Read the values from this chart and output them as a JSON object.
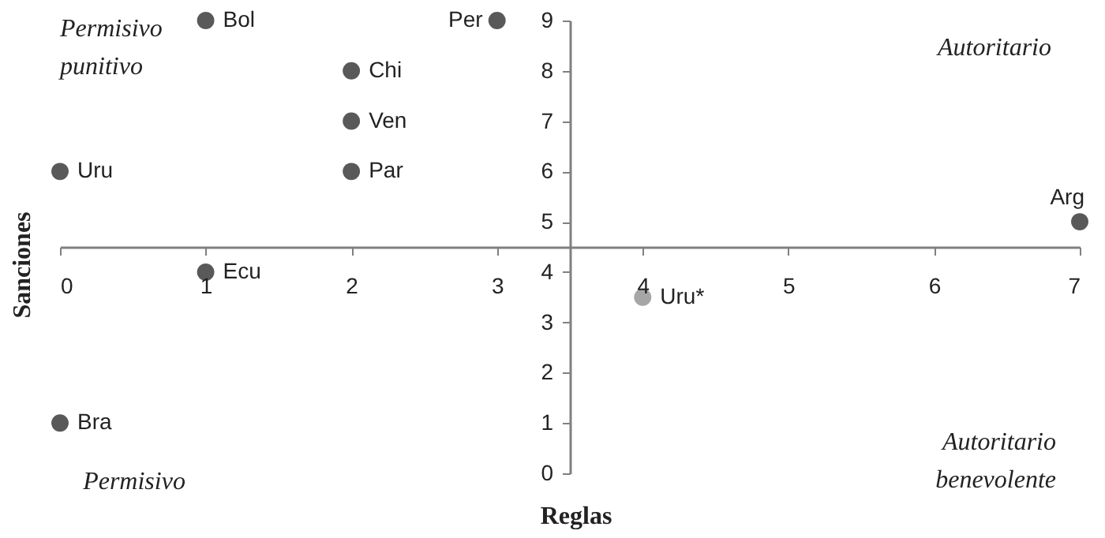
{
  "chart_data": {
    "type": "scatter",
    "xlabel": "Reglas",
    "ylabel": "Sanciones",
    "annotations": [
      "Permisivo punitivo",
      "Autoritario",
      "Permisivo",
      "Autoritario benevolente"
    ],
    "series": [
      {
        "x": [
          1,
          3,
          2,
          2,
          0,
          2,
          7,
          1,
          0
        ],
        "values": [
          9,
          9,
          8,
          7,
          6,
          6,
          5,
          4,
          1
        ],
        "value_labels": [
          "Bol",
          "Per",
          "Chi",
          "Ven",
          "Uru",
          "Par",
          "Arg",
          "Ecu",
          "Bra"
        ],
        "color": "#595959"
      },
      {
        "x": [
          4
        ],
        "values": [
          3.5
        ],
        "value_labels": [
          "Uru*"
        ],
        "color": "#a6a6a6"
      }
    ],
    "xlim": [
      0,
      7
    ],
    "xticks": [
      0,
      1,
      2,
      3,
      4,
      5,
      6,
      7
    ],
    "ylim": [
      0,
      9
    ],
    "yticks": [
      0,
      1,
      2,
      3,
      4,
      5,
      6,
      7,
      8,
      9
    ],
    "marker": "circle",
    "grid": false
  }
}
